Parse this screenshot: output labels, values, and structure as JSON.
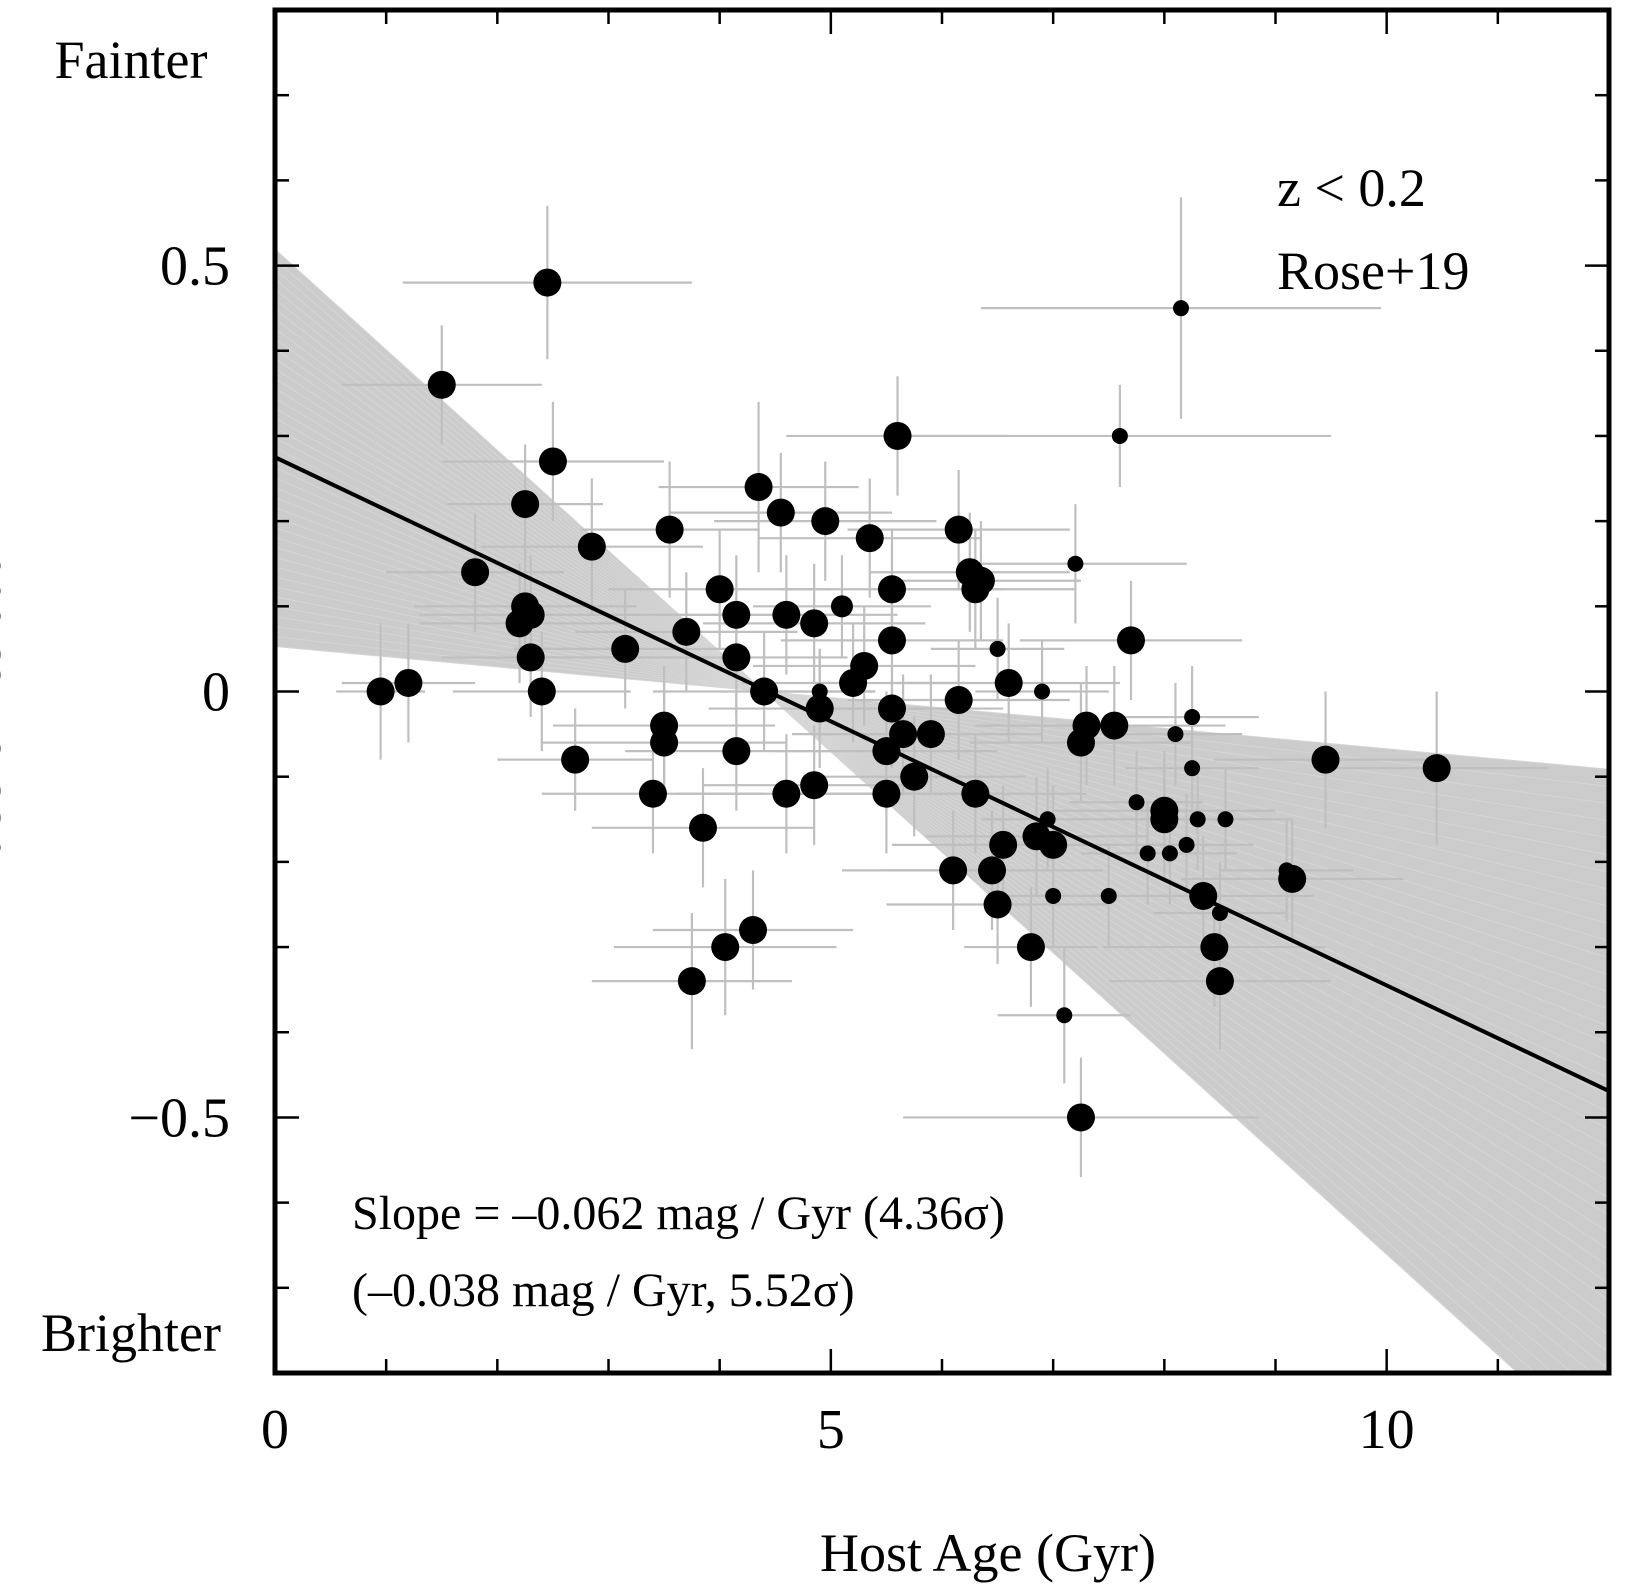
{
  "chart_data": {
    "type": "scatter",
    "title": "",
    "xlabel": "Host Age (Gyr)",
    "ylabel": "Hubble Residual",
    "xlim": [
      0,
      12
    ],
    "ylim": [
      -0.8,
      0.8
    ],
    "x_ticks": [
      {
        "value": 0,
        "label": "0"
      },
      {
        "value": 5,
        "label": "5"
      },
      {
        "value": 10,
        "label": "10"
      }
    ],
    "y_ticks": [
      {
        "value": 0.5,
        "label": "0.5"
      },
      {
        "value": 0,
        "label": "0"
      },
      {
        "value": -0.5,
        "label": "−0.5"
      }
    ],
    "y_end_labels": {
      "top": "Fainter",
      "bottom": "Brighter"
    },
    "legend_lines": [
      "z < 0.2",
      "Rose+19"
    ],
    "annotations": [
      "Slope = –0.062 mag / Gyr (4.36σ)",
      "(–0.038 mag / Gyr, 5.52σ)"
    ],
    "fit_line": {
      "intercept": 0.275,
      "slope": -0.062
    },
    "mcmc_band": {
      "pivot_x": 4.4,
      "pivot_y": 0.0,
      "slope_min": -0.118,
      "slope_max": -0.012
    },
    "grid": false,
    "colors": {
      "points": "#000000",
      "error_bars": "#bfbfbf",
      "band": "#cccccc",
      "fit_line": "#000000"
    },
    "points": [
      {
        "x": 0.95,
        "y": 0.0,
        "xerr": 0.4,
        "yerr": 0.08,
        "size": "large"
      },
      {
        "x": 1.2,
        "y": 0.01,
        "xerr": 0.6,
        "yerr": 0.07,
        "size": "large"
      },
      {
        "x": 1.5,
        "y": 0.36,
        "xerr": 0.9,
        "yerr": 0.07,
        "size": "large"
      },
      {
        "x": 1.8,
        "y": 0.14,
        "xerr": 0.8,
        "yerr": 0.07,
        "size": "large"
      },
      {
        "x": 2.25,
        "y": 0.1,
        "xerr": 1.0,
        "yerr": 0.07,
        "size": "large"
      },
      {
        "x": 2.2,
        "y": 0.08,
        "xerr": 0.9,
        "yerr": 0.07,
        "size": "large"
      },
      {
        "x": 2.3,
        "y": 0.09,
        "xerr": 1.0,
        "yerr": 0.07,
        "size": "large"
      },
      {
        "x": 2.25,
        "y": 0.22,
        "xerr": 0.7,
        "yerr": 0.07,
        "size": "large"
      },
      {
        "x": 2.3,
        "y": 0.04,
        "xerr": 0.8,
        "yerr": 0.07,
        "size": "large"
      },
      {
        "x": 2.4,
        "y": 0.0,
        "xerr": 0.8,
        "yerr": 0.07,
        "size": "large"
      },
      {
        "x": 2.45,
        "y": 0.48,
        "xerr": 1.3,
        "yerr": 0.09,
        "size": "large"
      },
      {
        "x": 2.5,
        "y": 0.27,
        "xerr": 1.0,
        "yerr": 0.07,
        "size": "large"
      },
      {
        "x": 2.7,
        "y": -0.08,
        "xerr": 0.7,
        "yerr": 0.06,
        "size": "large"
      },
      {
        "x": 2.85,
        "y": 0.17,
        "xerr": 1.0,
        "yerr": 0.08,
        "size": "large"
      },
      {
        "x": 3.15,
        "y": 0.05,
        "xerr": 1.0,
        "yerr": 0.07,
        "size": "large"
      },
      {
        "x": 3.4,
        "y": -0.12,
        "xerr": 1.0,
        "yerr": 0.07,
        "size": "large"
      },
      {
        "x": 3.5,
        "y": -0.04,
        "xerr": 1.0,
        "yerr": 0.07,
        "size": "large"
      },
      {
        "x": 3.5,
        "y": -0.06,
        "xerr": 1.1,
        "yerr": 0.07,
        "size": "large"
      },
      {
        "x": 3.55,
        "y": 0.19,
        "xerr": 0.8,
        "yerr": 0.08,
        "size": "large"
      },
      {
        "x": 3.7,
        "y": 0.07,
        "xerr": 1.0,
        "yerr": 0.07,
        "size": "large"
      },
      {
        "x": 3.75,
        "y": -0.34,
        "xerr": 0.9,
        "yerr": 0.08,
        "size": "large"
      },
      {
        "x": 3.85,
        "y": -0.16,
        "xerr": 1.0,
        "yerr": 0.07,
        "size": "large"
      },
      {
        "x": 4.0,
        "y": 0.12,
        "xerr": 1.0,
        "yerr": 0.07,
        "size": "large"
      },
      {
        "x": 4.05,
        "y": -0.3,
        "xerr": 1.0,
        "yerr": 0.08,
        "size": "large"
      },
      {
        "x": 4.15,
        "y": 0.09,
        "xerr": 1.0,
        "yerr": 0.07,
        "size": "large"
      },
      {
        "x": 4.15,
        "y": 0.04,
        "xerr": 1.0,
        "yerr": 0.07,
        "size": "large"
      },
      {
        "x": 4.15,
        "y": -0.07,
        "xerr": 1.0,
        "yerr": 0.07,
        "size": "large"
      },
      {
        "x": 4.3,
        "y": -0.28,
        "xerr": 0.9,
        "yerr": 0.07,
        "size": "large"
      },
      {
        "x": 4.35,
        "y": 0.24,
        "xerr": 0.9,
        "yerr": 0.1,
        "size": "large"
      },
      {
        "x": 4.4,
        "y": 0.0,
        "xerr": 1.0,
        "yerr": 0.07,
        "size": "large"
      },
      {
        "x": 4.55,
        "y": 0.21,
        "xerr": 1.0,
        "yerr": 0.07,
        "size": "large"
      },
      {
        "x": 4.6,
        "y": 0.09,
        "xerr": 1.0,
        "yerr": 0.07,
        "size": "large"
      },
      {
        "x": 4.6,
        "y": -0.12,
        "xerr": 1.0,
        "yerr": 0.07,
        "size": "large"
      },
      {
        "x": 4.85,
        "y": 0.08,
        "xerr": 1.0,
        "yerr": 0.07,
        "size": "large"
      },
      {
        "x": 4.85,
        "y": -0.11,
        "xerr": 1.0,
        "yerr": 0.07,
        "size": "large"
      },
      {
        "x": 4.9,
        "y": 0.0,
        "xerr": 0.5,
        "yerr": 0.05,
        "size": "small"
      },
      {
        "x": 4.9,
        "y": -0.02,
        "xerr": 1.0,
        "yerr": 0.07,
        "size": "large"
      },
      {
        "x": 4.95,
        "y": 0.2,
        "xerr": 1.0,
        "yerr": 0.07,
        "size": "large"
      },
      {
        "x": 5.1,
        "y": 0.1,
        "xerr": 0.8,
        "yerr": 0.06,
        "size": "medium"
      },
      {
        "x": 5.2,
        "y": 0.01,
        "xerr": 1.0,
        "yerr": 0.07,
        "size": "large"
      },
      {
        "x": 5.3,
        "y": 0.03,
        "xerr": 1.0,
        "yerr": 0.07,
        "size": "large"
      },
      {
        "x": 5.35,
        "y": 0.18,
        "xerr": 1.0,
        "yerr": 0.07,
        "size": "large"
      },
      {
        "x": 5.5,
        "y": -0.07,
        "xerr": 1.0,
        "yerr": 0.07,
        "size": "large"
      },
      {
        "x": 5.5,
        "y": -0.12,
        "xerr": 1.0,
        "yerr": 0.07,
        "size": "large"
      },
      {
        "x": 5.55,
        "y": 0.12,
        "xerr": 1.0,
        "yerr": 0.07,
        "size": "large"
      },
      {
        "x": 5.55,
        "y": 0.06,
        "xerr": 1.0,
        "yerr": 0.07,
        "size": "large"
      },
      {
        "x": 5.55,
        "y": -0.02,
        "xerr": 1.0,
        "yerr": 0.07,
        "size": "large"
      },
      {
        "x": 5.6,
        "y": 0.3,
        "xerr": 1.0,
        "yerr": 0.07,
        "size": "large"
      },
      {
        "x": 5.65,
        "y": -0.05,
        "xerr": 1.0,
        "yerr": 0.07,
        "size": "large"
      },
      {
        "x": 5.75,
        "y": -0.1,
        "xerr": 1.0,
        "yerr": 0.07,
        "size": "large"
      },
      {
        "x": 5.9,
        "y": -0.05,
        "xerr": 1.0,
        "yerr": 0.07,
        "size": "large"
      },
      {
        "x": 6.1,
        "y": -0.21,
        "xerr": 1.0,
        "yerr": 0.07,
        "size": "large"
      },
      {
        "x": 6.15,
        "y": -0.01,
        "xerr": 1.0,
        "yerr": 0.07,
        "size": "large"
      },
      {
        "x": 6.15,
        "y": 0.19,
        "xerr": 1.0,
        "yerr": 0.07,
        "size": "large"
      },
      {
        "x": 6.25,
        "y": 0.14,
        "xerr": 0.9,
        "yerr": 0.07,
        "size": "large"
      },
      {
        "x": 6.3,
        "y": -0.12,
        "xerr": 1.0,
        "yerr": 0.07,
        "size": "large"
      },
      {
        "x": 6.3,
        "y": 0.12,
        "xerr": 0.9,
        "yerr": 0.07,
        "size": "large"
      },
      {
        "x": 6.35,
        "y": 0.13,
        "xerr": 0.9,
        "yerr": 0.07,
        "size": "large"
      },
      {
        "x": 6.45,
        "y": -0.21,
        "xerr": 1.0,
        "yerr": 0.07,
        "size": "large"
      },
      {
        "x": 6.5,
        "y": 0.05,
        "xerr": 0.6,
        "yerr": 0.06,
        "size": "small"
      },
      {
        "x": 6.5,
        "y": -0.25,
        "xerr": 1.0,
        "yerr": 0.07,
        "size": "large"
      },
      {
        "x": 6.55,
        "y": -0.18,
        "xerr": 1.0,
        "yerr": 0.07,
        "size": "large"
      },
      {
        "x": 6.6,
        "y": 0.01,
        "xerr": 1.0,
        "yerr": 0.07,
        "size": "large"
      },
      {
        "x": 6.8,
        "y": -0.3,
        "xerr": 0.6,
        "yerr": 0.07,
        "size": "large"
      },
      {
        "x": 6.85,
        "y": -0.17,
        "xerr": 1.0,
        "yerr": 0.07,
        "size": "large"
      },
      {
        "x": 6.9,
        "y": 0.0,
        "xerr": 0.6,
        "yerr": 0.06,
        "size": "small"
      },
      {
        "x": 6.95,
        "y": -0.15,
        "xerr": 0.6,
        "yerr": 0.06,
        "size": "small"
      },
      {
        "x": 7.0,
        "y": -0.18,
        "xerr": 1.0,
        "yerr": 0.07,
        "size": "large"
      },
      {
        "x": 7.0,
        "y": -0.24,
        "xerr": 0.6,
        "yerr": 0.06,
        "size": "small"
      },
      {
        "x": 7.1,
        "y": -0.38,
        "xerr": 0.6,
        "yerr": 0.08,
        "size": "small"
      },
      {
        "x": 7.2,
        "y": 0.15,
        "xerr": 1.0,
        "yerr": 0.07,
        "size": "small"
      },
      {
        "x": 7.25,
        "y": -0.5,
        "xerr": 1.6,
        "yerr": 0.07,
        "size": "large"
      },
      {
        "x": 7.25,
        "y": -0.06,
        "xerr": 1.0,
        "yerr": 0.07,
        "size": "large"
      },
      {
        "x": 7.3,
        "y": -0.04,
        "xerr": 1.0,
        "yerr": 0.07,
        "size": "large"
      },
      {
        "x": 7.5,
        "y": -0.24,
        "xerr": 0.6,
        "yerr": 0.06,
        "size": "small"
      },
      {
        "x": 7.55,
        "y": -0.04,
        "xerr": 1.0,
        "yerr": 0.07,
        "size": "large"
      },
      {
        "x": 7.6,
        "y": 0.3,
        "xerr": 1.9,
        "yerr": 0.06,
        "size": "small"
      },
      {
        "x": 7.7,
        "y": 0.06,
        "xerr": 1.0,
        "yerr": 0.07,
        "size": "large"
      },
      {
        "x": 7.75,
        "y": -0.13,
        "xerr": 0.6,
        "yerr": 0.06,
        "size": "small"
      },
      {
        "x": 7.85,
        "y": -0.19,
        "xerr": 0.6,
        "yerr": 0.06,
        "size": "small"
      },
      {
        "x": 8.0,
        "y": -0.14,
        "xerr": 1.0,
        "yerr": 0.07,
        "size": "large"
      },
      {
        "x": 8.0,
        "y": -0.15,
        "xerr": 1.0,
        "yerr": 0.07,
        "size": "large"
      },
      {
        "x": 8.05,
        "y": -0.19,
        "xerr": 0.6,
        "yerr": 0.06,
        "size": "small"
      },
      {
        "x": 8.1,
        "y": -0.05,
        "xerr": 0.6,
        "yerr": 0.06,
        "size": "small"
      },
      {
        "x": 8.15,
        "y": 0.45,
        "xerr": 1.8,
        "yerr": 0.13,
        "size": "small"
      },
      {
        "x": 8.2,
        "y": -0.18,
        "xerr": 0.6,
        "yerr": 0.06,
        "size": "small"
      },
      {
        "x": 8.25,
        "y": -0.03,
        "xerr": 0.6,
        "yerr": 0.06,
        "size": "small"
      },
      {
        "x": 8.25,
        "y": -0.09,
        "xerr": 0.6,
        "yerr": 0.06,
        "size": "small"
      },
      {
        "x": 8.3,
        "y": -0.15,
        "xerr": 0.6,
        "yerr": 0.06,
        "size": "small"
      },
      {
        "x": 8.35,
        "y": -0.24,
        "xerr": 1.0,
        "yerr": 0.07,
        "size": "large"
      },
      {
        "x": 8.45,
        "y": -0.3,
        "xerr": 1.0,
        "yerr": 0.07,
        "size": "large"
      },
      {
        "x": 8.5,
        "y": -0.26,
        "xerr": 0.6,
        "yerr": 0.06,
        "size": "small"
      },
      {
        "x": 8.5,
        "y": -0.34,
        "xerr": 1.0,
        "yerr": 0.08,
        "size": "large"
      },
      {
        "x": 8.55,
        "y": -0.15,
        "xerr": 0.6,
        "yerr": 0.06,
        "size": "small"
      },
      {
        "x": 9.1,
        "y": -0.21,
        "xerr": 0.6,
        "yerr": 0.06,
        "size": "small"
      },
      {
        "x": 9.15,
        "y": -0.22,
        "xerr": 1.0,
        "yerr": 0.07,
        "size": "large"
      },
      {
        "x": 9.45,
        "y": -0.08,
        "xerr": 1.0,
        "yerr": 0.08,
        "size": "large"
      },
      {
        "x": 10.45,
        "y": -0.09,
        "xerr": 1.0,
        "yerr": 0.09,
        "size": "large"
      }
    ]
  }
}
